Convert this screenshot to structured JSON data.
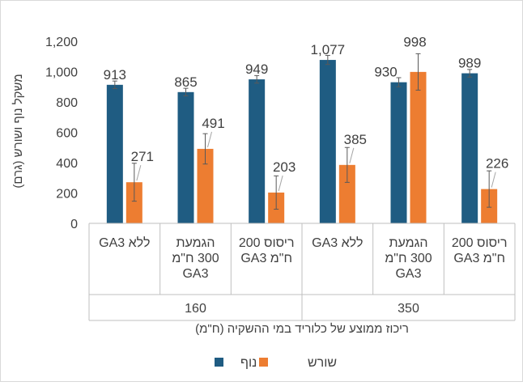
{
  "chart_data": {
    "type": "bar",
    "ylabel": "משקל נוף ושורש (גרם)",
    "xlabel": "ריכוז ממוצע של כלוריד במי ההשקיה (ח\"מ)",
    "ylim": [
      0,
      1200
    ],
    "yticks": [
      "0",
      "200",
      "400",
      "600",
      "800",
      "1,000",
      "1,200"
    ],
    "grid": false,
    "legend_position": "bottom",
    "groups": [
      {
        "label": "160",
        "categories": [
          {
            "lines": [
              "ללא GA3"
            ]
          },
          {
            "lines": [
              "הגמעת",
              "300 ח\"מ",
              "GA3"
            ]
          },
          {
            "lines": [
              "ריסוס 200",
              "ח\"מ GA3"
            ]
          }
        ]
      },
      {
        "label": "350",
        "categories": [
          {
            "lines": [
              "ללא GA3"
            ]
          },
          {
            "lines": [
              "הגמעת",
              "300 ח\"מ",
              "GA3"
            ]
          },
          {
            "lines": [
              "ריסוס 200",
              "ח\"מ GA3"
            ]
          }
        ]
      }
    ],
    "series": [
      {
        "name": "נוף",
        "color": "#1f5c82",
        "values": [
          913,
          865,
          949,
          1077,
          930,
          989
        ],
        "labels": [
          "913",
          "865",
          "949",
          "1,077",
          "930",
          "989"
        ],
        "errors": [
          25,
          25,
          25,
          30,
          30,
          25
        ]
      },
      {
        "name": "שורש",
        "color": "#ed7d31",
        "values": [
          271,
          491,
          203,
          385,
          998,
          226
        ],
        "labels": [
          "271",
          "491",
          "203",
          "385",
          "998",
          "226"
        ],
        "errors": [
          125,
          100,
          110,
          115,
          120,
          120
        ]
      }
    ]
  }
}
